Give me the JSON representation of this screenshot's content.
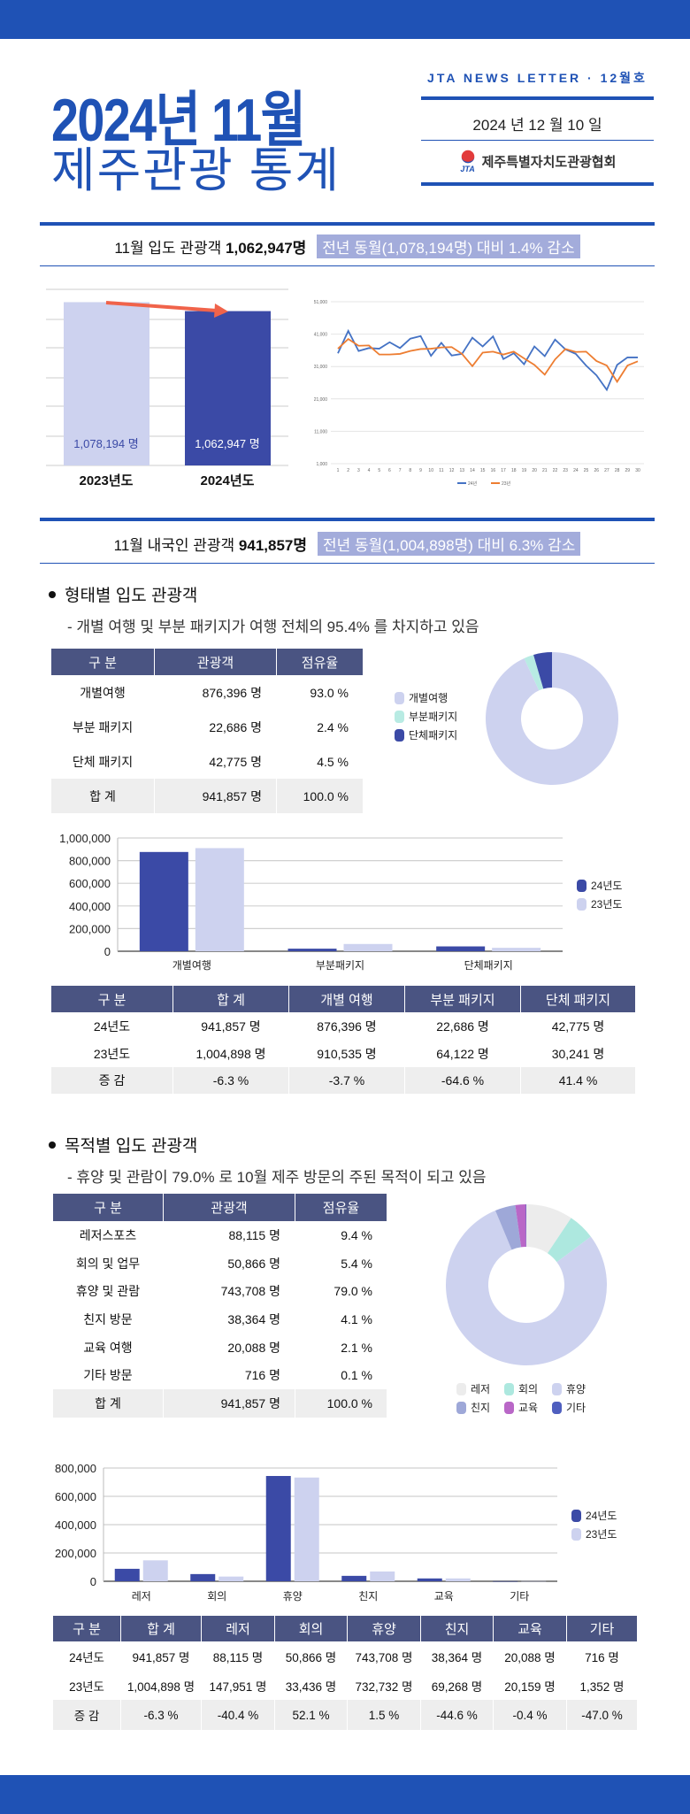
{
  "header": {
    "title": "2024년 11월",
    "subtitle": "제주관광 통계",
    "newsletter": "JTA NEWS LETTER · 12월호",
    "date": "2024 년  12 월  10 일",
    "org": "제주특별자치도관광협회",
    "logo_text": "JTA"
  },
  "colors": {
    "brand": "#1f52b5",
    "table_header": "#4a5482",
    "bar_24": "#3b4aa6",
    "bar_23": "#cdd2ef",
    "highlight": "#a3acdb",
    "line_24": "#4472c4",
    "line_23": "#ed7d31",
    "arrow": "#f0634a"
  },
  "summary1": {
    "prefix": "11월 입도 관광객 ",
    "value": "1,062,947명",
    "compare": "전년 동월(1,078,194명) 대비 1.4% 감소"
  },
  "summary2": {
    "prefix": "11월 내국인 관광객 ",
    "value": "941,857명",
    "compare": "전년 동월(1,004,898명) 대비 6.3% 감소"
  },
  "section1": {
    "heading": "형태별 입도 관광객",
    "note": "- 개별 여행 및 부분 패키지가 여행 전체의 95.4% 를 차지하고 있음",
    "table": {
      "headers": [
        "구 분",
        "관광객",
        "점유율"
      ],
      "rows": [
        [
          "개별여행",
          "876,396 명",
          "93.0 %"
        ],
        [
          "부분 패키지",
          "22,686 명",
          "2.4 %"
        ],
        [
          "단체 패키지",
          "42,775 명",
          "4.5 %"
        ],
        [
          "합  계",
          "941,857 명",
          "100.0 %"
        ]
      ]
    },
    "legend": [
      "개별여행",
      "부분패키지",
      "단체패키지"
    ],
    "table2": {
      "headers": [
        "구 분",
        "합  계",
        "개별 여행",
        "부분 패키지",
        "단체 패키지"
      ],
      "rows": [
        [
          "24년도",
          "941,857 명",
          "876,396 명",
          "22,686 명",
          "42,775 명"
        ],
        [
          "23년도",
          "1,004,898 명",
          "910,535 명",
          "64,122 명",
          "30,241 명"
        ],
        [
          "증  감",
          "-6.3 %",
          "-3.7 %",
          "-64.6 %",
          "41.4 %"
        ]
      ]
    }
  },
  "section2": {
    "heading": "목적별 입도 관광객",
    "note": "- 휴양 및 관람이 79.0% 로 10월 제주 방문의 주된 목적이 되고 있음",
    "table": {
      "headers": [
        "구 분",
        "관광객",
        "점유율"
      ],
      "rows": [
        [
          "레저스포츠",
          "88,115 명",
          "9.4 %"
        ],
        [
          "회의 및 업무",
          "50,866 명",
          "5.4 %"
        ],
        [
          "휴양 및 관람",
          "743,708 명",
          "79.0 %"
        ],
        [
          "친지 방문",
          "38,364 명",
          "4.1 %"
        ],
        [
          "교육 여행",
          "20,088 명",
          "2.1 %"
        ],
        [
          "기타 방문",
          "716 명",
          "0.1 %"
        ],
        [
          "합  계",
          "941,857 명",
          "100.0 %"
        ]
      ]
    },
    "legend": [
      "레저",
      "회의",
      "휴양",
      "친지",
      "교육",
      "기타"
    ],
    "table2": {
      "headers": [
        "구 분",
        "합  계",
        "레저",
        "회의",
        "휴양",
        "친지",
        "교육",
        "기타"
      ],
      "rows": [
        [
          "24년도",
          "941,857 명",
          "88,115 명",
          "50,866 명",
          "743,708 명",
          "38,364 명",
          "20,088 명",
          "716 명"
        ],
        [
          "23년도",
          "1,004,898 명",
          "147,951 명",
          "33,436 명",
          "732,732 명",
          "69,268 명",
          "20,159 명",
          "1,352 명"
        ],
        [
          "증  감",
          "-6.3 %",
          "-40.4 %",
          "52.1 %",
          "1.5 %",
          "-44.6 %",
          "-0.4 %",
          "-47.0 %"
        ]
      ]
    }
  },
  "chart_data": [
    {
      "type": "bar",
      "categories": [
        "2023년도",
        "2024년도"
      ],
      "values": [
        1078194,
        1062947
      ],
      "data_labels": [
        "1,078,194 명",
        "1,062,947 명"
      ],
      "colors": [
        "#cdd2ef",
        "#3b4aa6"
      ],
      "ylim": [
        800000,
        1100000
      ],
      "grid": true,
      "annotation": "trend-arrow-down"
    },
    {
      "type": "line",
      "x": [
        1,
        2,
        3,
        4,
        5,
        6,
        7,
        8,
        9,
        10,
        11,
        12,
        13,
        14,
        15,
        16,
        17,
        18,
        19,
        20,
        21,
        22,
        23,
        24,
        25,
        26,
        27,
        28,
        29,
        30
      ],
      "x_tick_labels": [
        "1",
        "2",
        "3",
        "4",
        "5",
        "6",
        "7",
        "8",
        "9",
        "10",
        "11",
        "12",
        "13",
        "14",
        "15",
        "16",
        "17",
        "18",
        "19",
        "20",
        "21",
        "22",
        "23",
        "24",
        "25",
        "26",
        "27",
        "28",
        "29",
        "30"
      ],
      "y_tick_labels": [
        "1,000",
        "11,000",
        "21,000",
        "31,000",
        "41,000",
        "51,000"
      ],
      "ylim": [
        1000,
        51000
      ],
      "grid": true,
      "legend": "bottom",
      "series": [
        {
          "name": "24년",
          "color": "#4472c4",
          "values": [
            35100,
            42000,
            35800,
            36700,
            36500,
            38500,
            36700,
            39600,
            40400,
            34300,
            38300,
            34400,
            34900,
            39900,
            37200,
            40300,
            33300,
            35100,
            31700,
            37200,
            34200,
            39300,
            36300,
            34900,
            31300,
            28300,
            23800,
            31500,
            33800,
            33800
          ]
        },
        {
          "name": "23년",
          "color": "#ed7d31",
          "values": [
            36500,
            39500,
            37400,
            37500,
            34700,
            34700,
            34900,
            35800,
            36400,
            36500,
            36900,
            37000,
            34900,
            31100,
            35300,
            35600,
            34700,
            35600,
            33500,
            31500,
            28500,
            33200,
            36400,
            35500,
            35600,
            32700,
            31300,
            26300,
            31300,
            32600
          ]
        }
      ]
    },
    {
      "type": "pie",
      "donut": true,
      "categories": [
        "개별여행",
        "부분패키지",
        "단체패키지"
      ],
      "values": [
        93.0,
        2.4,
        4.5
      ],
      "colors": [
        "#cdd2ef",
        "#b8ebe3",
        "#3b4aa6"
      ],
      "legend": "left"
    },
    {
      "type": "bar",
      "categories": [
        "개별여행",
        "부분패키지",
        "단체패키지"
      ],
      "series": [
        {
          "name": "24년도",
          "values": [
            876396,
            22686,
            42775
          ],
          "color": "#3b4aa6"
        },
        {
          "name": "23년도",
          "values": [
            910535,
            64122,
            30241
          ],
          "color": "#cdd2ef"
        }
      ],
      "y_tick_labels": [
        "0",
        "200,000",
        "400,000",
        "600,000",
        "800,000",
        "1,000,000"
      ],
      "ylim": [
        0,
        1000000
      ],
      "grid": true,
      "legend": "right"
    },
    {
      "type": "pie",
      "donut": true,
      "categories": [
        "레저",
        "회의",
        "휴양",
        "친지",
        "교육",
        "기타"
      ],
      "values": [
        9.4,
        5.4,
        79.0,
        4.1,
        2.1,
        0.1
      ],
      "colors": [
        "#ececec",
        "#ade8df",
        "#cdd2ef",
        "#9ea8d8",
        "#b967c7",
        "#4f5fbf"
      ],
      "legend": "bottom"
    },
    {
      "type": "bar",
      "categories": [
        "레저",
        "회의",
        "휴양",
        "친지",
        "교육",
        "기타"
      ],
      "series": [
        {
          "name": "24년도",
          "values": [
            88115,
            50866,
            743708,
            38364,
            20088,
            716
          ],
          "color": "#3b4aa6"
        },
        {
          "name": "23년도",
          "values": [
            147951,
            33436,
            732732,
            69268,
            20159,
            1352
          ],
          "color": "#cdd2ef"
        }
      ],
      "y_tick_labels": [
        "0",
        "200,000",
        "400,000",
        "600,000",
        "800,000"
      ],
      "ylim": [
        0,
        800000
      ],
      "grid": true,
      "legend": "right"
    }
  ]
}
